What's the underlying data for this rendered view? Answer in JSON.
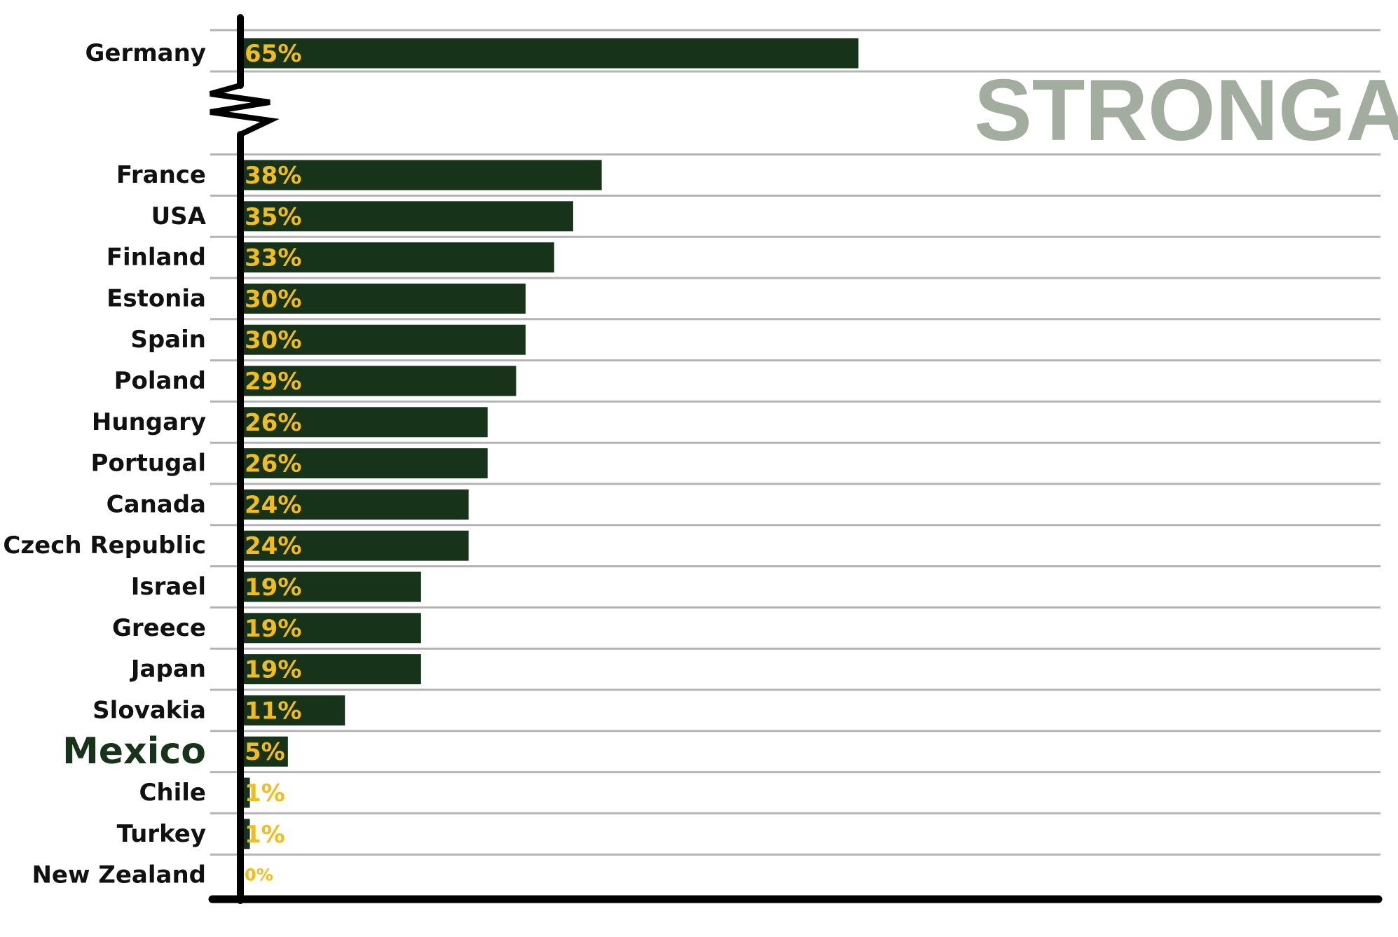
{
  "watermark": "STRONGA",
  "colors": {
    "bar": "#17331a",
    "value_text": "#f2bc1b",
    "highlight_label": "#17331a",
    "label": "#111111",
    "gridline": "#b4b4b4",
    "axis": "#000000",
    "watermark": "#a2ad9f"
  },
  "chart_data": {
    "type": "bar",
    "orientation": "horizontal",
    "axis_break_after": "Germany",
    "highlight": "Mexico",
    "categories": [
      "Germany",
      "France",
      "USA",
      "Finland",
      "Estonia",
      "Spain",
      "Poland",
      "Hungary",
      "Portugal",
      "Canada",
      "Czech Republic",
      "Israel",
      "Greece",
      "Japan",
      "Slovakia",
      "Mexico",
      "Chile",
      "Turkey",
      "New Zealand"
    ],
    "values": [
      65,
      38,
      35,
      33,
      30,
      30,
      29,
      26,
      26,
      24,
      24,
      19,
      19,
      19,
      11,
      5,
      1,
      1,
      0
    ],
    "value_labels": [
      "65%",
      "38%",
      "35%",
      "33%",
      "30%",
      "30%",
      "29%",
      "26%",
      "26%",
      "24%",
      "24%",
      "19%",
      "19%",
      "19%",
      "11%",
      "5%",
      "1%",
      "1%",
      "0%"
    ],
    "grid": true,
    "title": "",
    "xlabel": "",
    "ylabel": ""
  }
}
